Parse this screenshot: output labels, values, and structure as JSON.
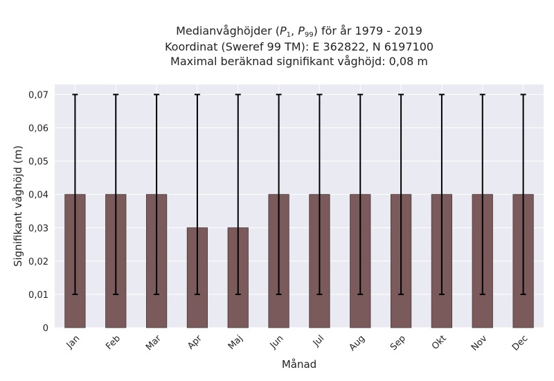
{
  "chart_data": {
    "type": "bar",
    "title_lines": [
      {
        "pre": "Medianvåghöjder (",
        "p": "P",
        "s1": "1",
        "sep": ", ",
        "s2": "99",
        "post": ") för år 1979 - 2019"
      },
      "Koordinat (Sweref 99 TM): E 362822, N 6197100",
      "Maximal beräknad signifikant våghöjd: 0,08 m"
    ],
    "xlabel": "Månad",
    "ylabel": "Signifikant våghöjd (m)",
    "categories": [
      "Jan",
      "Feb",
      "Mar",
      "Apr",
      "Maj",
      "Jun",
      "Jul",
      "Aug",
      "Sep",
      "Okt",
      "Nov",
      "Dec"
    ],
    "series": [
      {
        "values": [
          0.04,
          0.04,
          0.04,
          0.03,
          0.03,
          0.04,
          0.04,
          0.04,
          0.04,
          0.04,
          0.04,
          0.04
        ],
        "error_low": [
          0.01,
          0.01,
          0.01,
          0.01,
          0.01,
          0.01,
          0.01,
          0.01,
          0.01,
          0.01,
          0.01,
          0.01
        ],
        "error_high": [
          0.07,
          0.07,
          0.07,
          0.07,
          0.07,
          0.07,
          0.07,
          0.07,
          0.07,
          0.07,
          0.07,
          0.07
        ]
      }
    ],
    "ylim": [
      0,
      0.073
    ],
    "yticks": [
      0,
      0.01,
      0.02,
      0.03,
      0.04,
      0.05,
      0.06,
      0.07
    ],
    "ytick_labels": [
      "0",
      "0,01",
      "0,02",
      "0,03",
      "0,04",
      "0,05",
      "0,06",
      "0,07"
    ],
    "grid": true,
    "colors": {
      "bar": "#7a5a5b",
      "bar_edge": "#4a3636",
      "plot_bg": "#eaeaf2",
      "grid": "#ffffff",
      "errorbar": "#000000"
    }
  }
}
